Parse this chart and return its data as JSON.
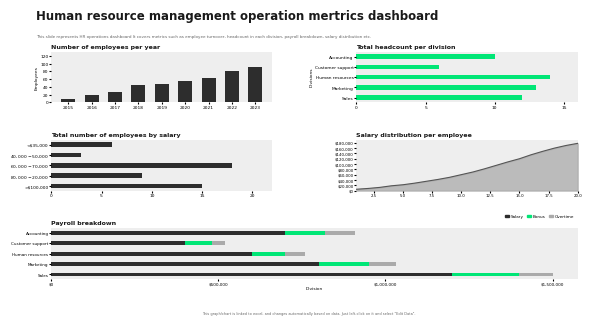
{
  "title": "Human resource management operation mertrics dashboard",
  "subtitle": "This slide represents HR operations dashboard It covers metrics such as employee turnover, headcount in each division, payroll breakdown, salary distribution etc.",
  "bg_color": "#ffffff",
  "title_color": "#1a1a1a",
  "chart_bg": "#eeeeee",
  "emp_per_year": {
    "title": "Number of employees per year",
    "years": [
      "2015",
      "2016",
      "2017",
      "2018",
      "2019",
      "2020",
      "2021",
      "2022",
      "2023"
    ],
    "values": [
      8,
      20,
      28,
      45,
      47,
      55,
      63,
      82,
      92
    ],
    "bar_color": "#2d2d2d",
    "ylabel": "Employees"
  },
  "headcount": {
    "title": "Total headcount per division",
    "divisions": [
      "Sales",
      "Marketing",
      "Human resources",
      "Customer support",
      "Accounting"
    ],
    "values": [
      12,
      13,
      14,
      6,
      10
    ],
    "bar_color": "#00e676",
    "ylabel": "Divisions"
  },
  "salary_total": {
    "title": "Total number of employees by salary",
    "categories": [
      ">$100,000",
      "$80,000-$20,000",
      "$60,000-$70,000",
      "$40,000-$50,000",
      "<$35,000"
    ],
    "values": [
      15,
      9,
      18,
      3,
      6
    ],
    "bar_color": "#2d2d2d"
  },
  "salary_dist": {
    "title": "Salary distribution per employee",
    "x": [
      1,
      2,
      3,
      4,
      5,
      6,
      7,
      8,
      9,
      10,
      11,
      12,
      13,
      14,
      15,
      16,
      17,
      18,
      19,
      20
    ],
    "y": [
      5000,
      8000,
      12000,
      18000,
      22000,
      28000,
      35000,
      42000,
      50000,
      60000,
      70000,
      82000,
      95000,
      108000,
      120000,
      135000,
      148000,
      160000,
      170000,
      178000
    ],
    "line_color": "#555555",
    "fill_color": "#aaaaaa"
  },
  "payroll": {
    "title": "Payroll breakdown",
    "divisions": [
      "Sales",
      "Marketing",
      "Human resources",
      "Customer support",
      "Accounting"
    ],
    "salary": [
      1200000,
      800000,
      600000,
      400000,
      700000
    ],
    "bonus": [
      200000,
      150000,
      100000,
      80000,
      120000
    ],
    "overtime": [
      100000,
      80000,
      60000,
      40000,
      90000
    ],
    "colors": {
      "salary": "#2d2d2d",
      "bonus": "#00e676",
      "overtime": "#aaaaaa"
    },
    "xlabel": "Division",
    "legend": [
      "Salary",
      "Bonus",
      "Overtime"
    ]
  },
  "footer": "This graph/chart is linked to excel, and changes automatically based on data. Just left-click on it and select \"Edit Data\"."
}
